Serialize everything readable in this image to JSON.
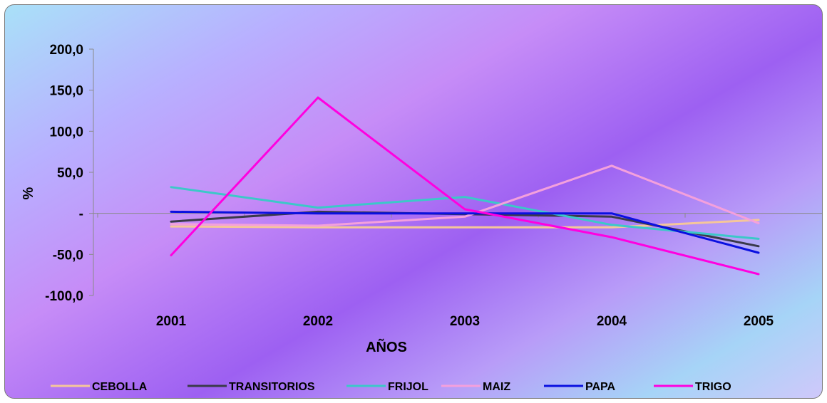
{
  "chart_data": {
    "type": "line",
    "title": "",
    "xlabel": "AÑOS",
    "ylabel": "%",
    "categories": [
      "2001",
      "2002",
      "2003",
      "2004",
      "2005"
    ],
    "ylim": [
      -100,
      200
    ],
    "yticks": [
      200,
      150,
      100,
      50,
      0,
      -50,
      -100
    ],
    "ytick_labels": [
      "200,0",
      "150,0",
      "100,0",
      "50,0",
      "-",
      "-50,0",
      "-100,0"
    ],
    "grid": false,
    "legend_position": "bottom",
    "series": [
      {
        "name": "CEBOLLA",
        "color": "#f5c69a",
        "values": [
          -16,
          -17,
          -17,
          -17,
          -8
        ]
      },
      {
        "name": "TRANSITORIOS",
        "color": "#3a3a4a",
        "values": [
          -10,
          2,
          -1,
          -4,
          -40
        ]
      },
      {
        "name": "FRIJOL",
        "color": "#3cc8c8",
        "values": [
          32,
          7,
          20,
          -14,
          -31
        ]
      },
      {
        "name": "MAIZ",
        "color": "#f4a0dc",
        "values": [
          -13,
          -15,
          -4,
          58,
          -12
        ]
      },
      {
        "name": "PAPA",
        "color": "#0a10e0",
        "values": [
          2,
          0,
          0,
          0,
          -48
        ]
      },
      {
        "name": "TRIGO",
        "color": "#ff00e0",
        "values": [
          -51,
          141,
          5,
          -29,
          -74
        ]
      }
    ]
  }
}
